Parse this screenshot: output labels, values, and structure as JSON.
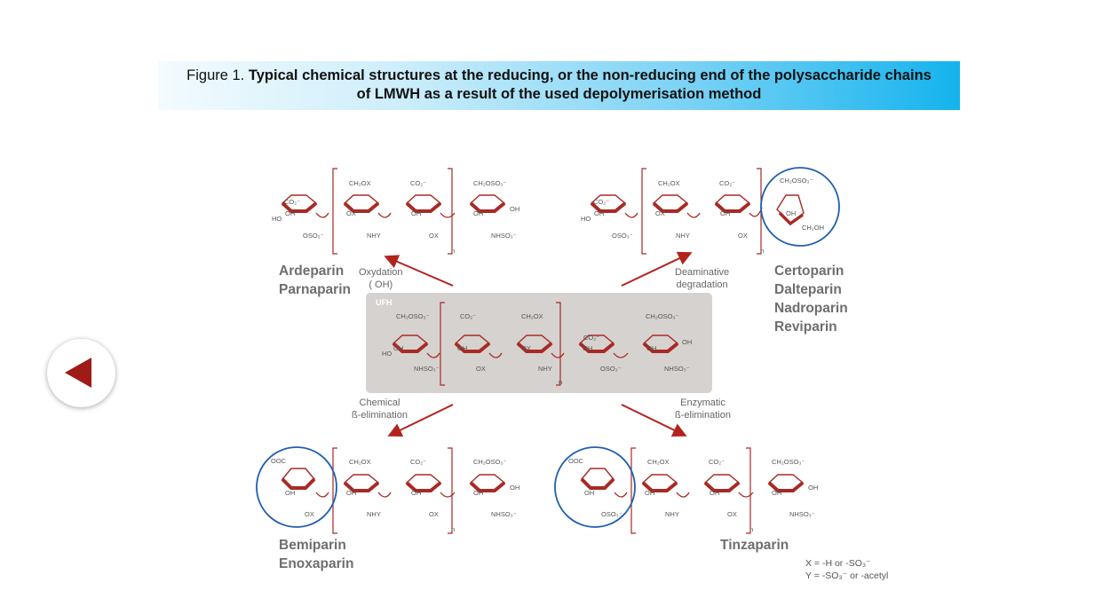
{
  "title": {
    "figure_label": "Figure 1.",
    "line1": "Typical chemical structures at the reducing, or the non-reducing end of the polysaccharide chains",
    "line2": "of LMWH as a result of the used depolymerisation method"
  },
  "center": {
    "label": "UFH"
  },
  "methods": {
    "oxidation": {
      "line1": "Oxydation",
      "line2": "( OH)"
    },
    "deaminative": {
      "line1": "Deaminative",
      "line2": "degradation"
    },
    "chemical": {
      "line1": "Chemical",
      "line2": "ß-elimination"
    },
    "enzymatic": {
      "line1": "Enzymatic",
      "line2": "ß-elimination"
    }
  },
  "drugs": {
    "top_left": [
      "Ardeparin",
      "Parnaparin"
    ],
    "top_right": [
      "Certoparin",
      "Dalteparin",
      "Nadroparin",
      "Reviparin"
    ],
    "bottom_left": [
      "Bemiparin",
      "Enoxaparin"
    ],
    "bottom_right": [
      "Tinzaparin"
    ]
  },
  "legend": {
    "line1": "X = -H or -SO₃⁻",
    "line2": "Y = -SO₃⁻ or -acetyl"
  },
  "colors": {
    "sugar_ring": "#a82a24",
    "bracket": "#a82a24",
    "circle": "#1f5fb0",
    "arrow": "#b3231d",
    "ufh_box": "#d6d2cf"
  }
}
